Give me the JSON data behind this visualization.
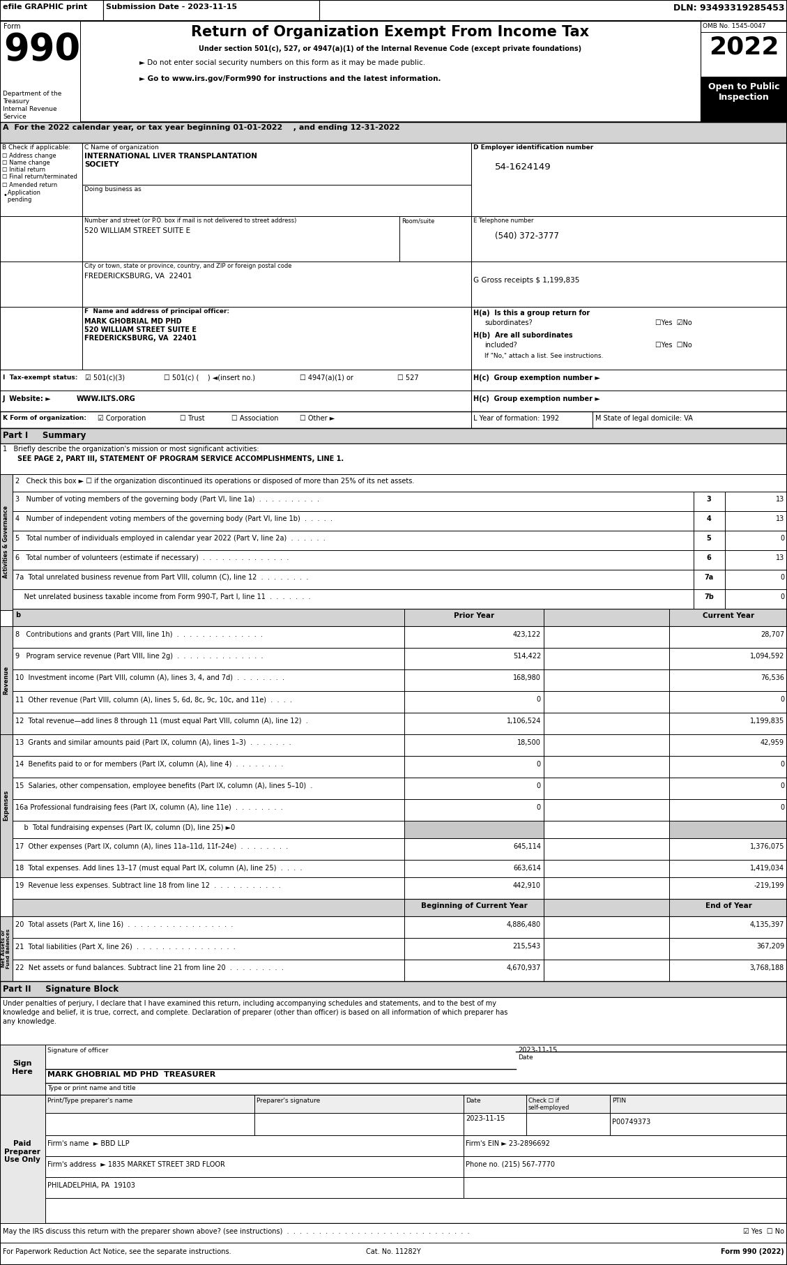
{
  "title_line": "Return of Organization Exempt From Income Tax",
  "efile_text": "efile GRAPHIC print",
  "submission_date": "Submission Date - 2023-11-15",
  "dln": "DLN: 93493319285453",
  "under_section": "Under section 501(c), 527, or 4947(a)(1) of the Internal Revenue Code (except private foundations)",
  "do_not_enter": "► Do not enter social security numbers on this form as it may be made public.",
  "go_to": "► Go to www.irs.gov/Form990 for instructions and the latest information.",
  "omb": "OMB No. 1545-0047",
  "year2022": "2022",
  "open_public": "Open to Public\nInspection",
  "line_a": "A  For the 2022 calendar year, or tax year beginning 01-01-2022    , and ending 12-31-2022",
  "org_name1": "INTERNATIONAL LIVER TRANSPLANTATION",
  "org_name2": "SOCIETY",
  "ein": "54-1624149",
  "address_val": "520 WILLIAM STREET SUITE E",
  "phone_val": "(540) 372-3777",
  "city_val": "FREDERICKSBURG, VA  22401",
  "gross_val": "G Gross receipts $ 1,199,835",
  "principal_name": "MARK GHOBRIAL MD PHD",
  "principal_a1": "520 WILLIAM STREET SUITE E",
  "principal_a2": "FREDERICKSBURG, VA  22401",
  "website": "WWW.ILTS.ORG",
  "line1_text": "SEE PAGE 2, PART III, STATEMENT OF PROGRAM SERVICE ACCOMPLISHMENTS, LINE 1.",
  "line2_text": "2   Check this box ► ☐ if the organization discontinued its operations or disposed of more than 25% of its net assets.",
  "line3_text": "3   Number of voting members of the governing body (Part VI, line 1a)  .  .  .  .  .  .  .  .  .  .",
  "line4_text": "4   Number of independent voting members of the governing body (Part VI, line 1b)  .  .  .  .  .",
  "line5_text": "5   Total number of individuals employed in calendar year 2022 (Part V, line 2a)  .  .  .  .  .  .",
  "line6_text": "6   Total number of volunteers (estimate if necessary)  .  .  .  .  .  .  .  .  .  .  .  .  .  .",
  "line7a_text": "7a  Total unrelated business revenue from Part VIII, column (C), line 12  .  .  .  .  .  .  .  .",
  "line7b_text": "    Net unrelated business taxable income from Form 990-T, Part I, line 11  .  .  .  .  .  .  .",
  "line8_text": "8   Contributions and grants (Part VIII, line 1h)  .  .  .  .  .  .  .  .  .  .  .  .  .  .",
  "line9_text": "9   Program service revenue (Part VIII, line 2g)  .  .  .  .  .  .  .  .  .  .  .  .  .  .",
  "line10_text": "10  Investment income (Part VIII, column (A), lines 3, 4, and 7d)  .  .  .  .  .  .  .  .",
  "line11_text": "11  Other revenue (Part VIII, column (A), lines 5, 6d, 8c, 9c, 10c, and 11e)  .  .  .  .",
  "line12_text": "12  Total revenue—add lines 8 through 11 (must equal Part VIII, column (A), line 12)  .",
  "line13_text": "13  Grants and similar amounts paid (Part IX, column (A), lines 1–3)  .  .  .  .  .  .  .",
  "line14_text": "14  Benefits paid to or for members (Part IX, column (A), line 4)  .  .  .  .  .  .  .  .",
  "line15_text": "15  Salaries, other compensation, employee benefits (Part IX, column (A), lines 5–10)  .",
  "line16a_text": "16a Professional fundraising fees (Part IX, column (A), line 11e)  .  .  .  .  .  .  .  .",
  "line16b_text": "    b  Total fundraising expenses (Part IX, column (D), line 25) ►0",
  "line17_text": "17  Other expenses (Part IX, column (A), lines 11a–11d, 11f–24e)  .  .  .  .  .  .  .  .",
  "line18_text": "18  Total expenses. Add lines 13–17 (must equal Part IX, column (A), line 25)  .  .  .  .",
  "line19_text": "19  Revenue less expenses. Subtract line 18 from line 12  .  .  .  .  .  .  .  .  .  .  .",
  "line20_text": "20  Total assets (Part X, line 16)  .  .  .  .  .  .  .  .  .  .  .  .  .  .  .  .  .",
  "line21_text": "21  Total liabilities (Part X, line 26)  .  .  .  .  .  .  .  .  .  .  .  .  .  .  .  .",
  "line22_text": "22  Net assets or fund balances. Subtract line 21 from line 20  .  .  .  .  .  .  .  .  .",
  "v3": "13",
  "v4": "13",
  "v5": "0",
  "v6": "13",
  "v7a": "0",
  "v7b": "0",
  "p8": "423,122",
  "c8": "28,707",
  "p9": "514,422",
  "c9": "1,094,592",
  "p10": "168,980",
  "c10": "76,536",
  "p11": "0",
  "c11": "0",
  "p12": "1,106,524",
  "c12": "1,199,835",
  "p13": "18,500",
  "c13": "42,959",
  "p14": "0",
  "c14": "0",
  "p15": "0",
  "c15": "0",
  "p16a": "0",
  "c16a": "0",
  "p17": "645,114",
  "c17": "1,376,075",
  "p18": "663,614",
  "c18": "1,419,034",
  "p19": "442,910",
  "c19": "-219,199",
  "b20": "4,886,480",
  "e20": "4,135,397",
  "b21": "215,543",
  "e21": "367,209",
  "b22": "4,670,937",
  "e22": "3,768,188",
  "sig_declaration1": "Under penalties of perjury, I declare that I have examined this return, including accompanying schedules and statements, and to the best of my",
  "sig_declaration2": "knowledge and belief, it is true, correct, and complete. Declaration of preparer (other than officer) is based on all information of which preparer has",
  "sig_declaration3": "any knowledge.",
  "sig_date": "2023-11-15",
  "sig_name": "MARK GHOBRIAL MD PHD  TREASURER",
  "firm_name": "Firm's name  ► BBD LLP",
  "firm_ein": "Firm's EIN ► 23-2896692",
  "firm_address": "Firm's address  ► 1835 MARKET STREET 3RD FLOOR",
  "firm_city": "PHILADELPHIA, PA  19103",
  "firm_phone": "Phone no. (215) 567-7770",
  "preparer_ptin": "P00749373",
  "discuss_label": "May the IRS discuss this return with the preparer shown above? (see instructions)  .  .  .  .  .  .  .  .  .  .  .  .  .  .  .  .  .  .  .  .  .  .  .  .  .  .  .  .  .",
  "paperwork_label": "For Paperwork Reduction Act Notice, see the separate instructions.",
  "cat_no": "Cat. No. 11282Y",
  "form_label": "Form 990 (2022)"
}
